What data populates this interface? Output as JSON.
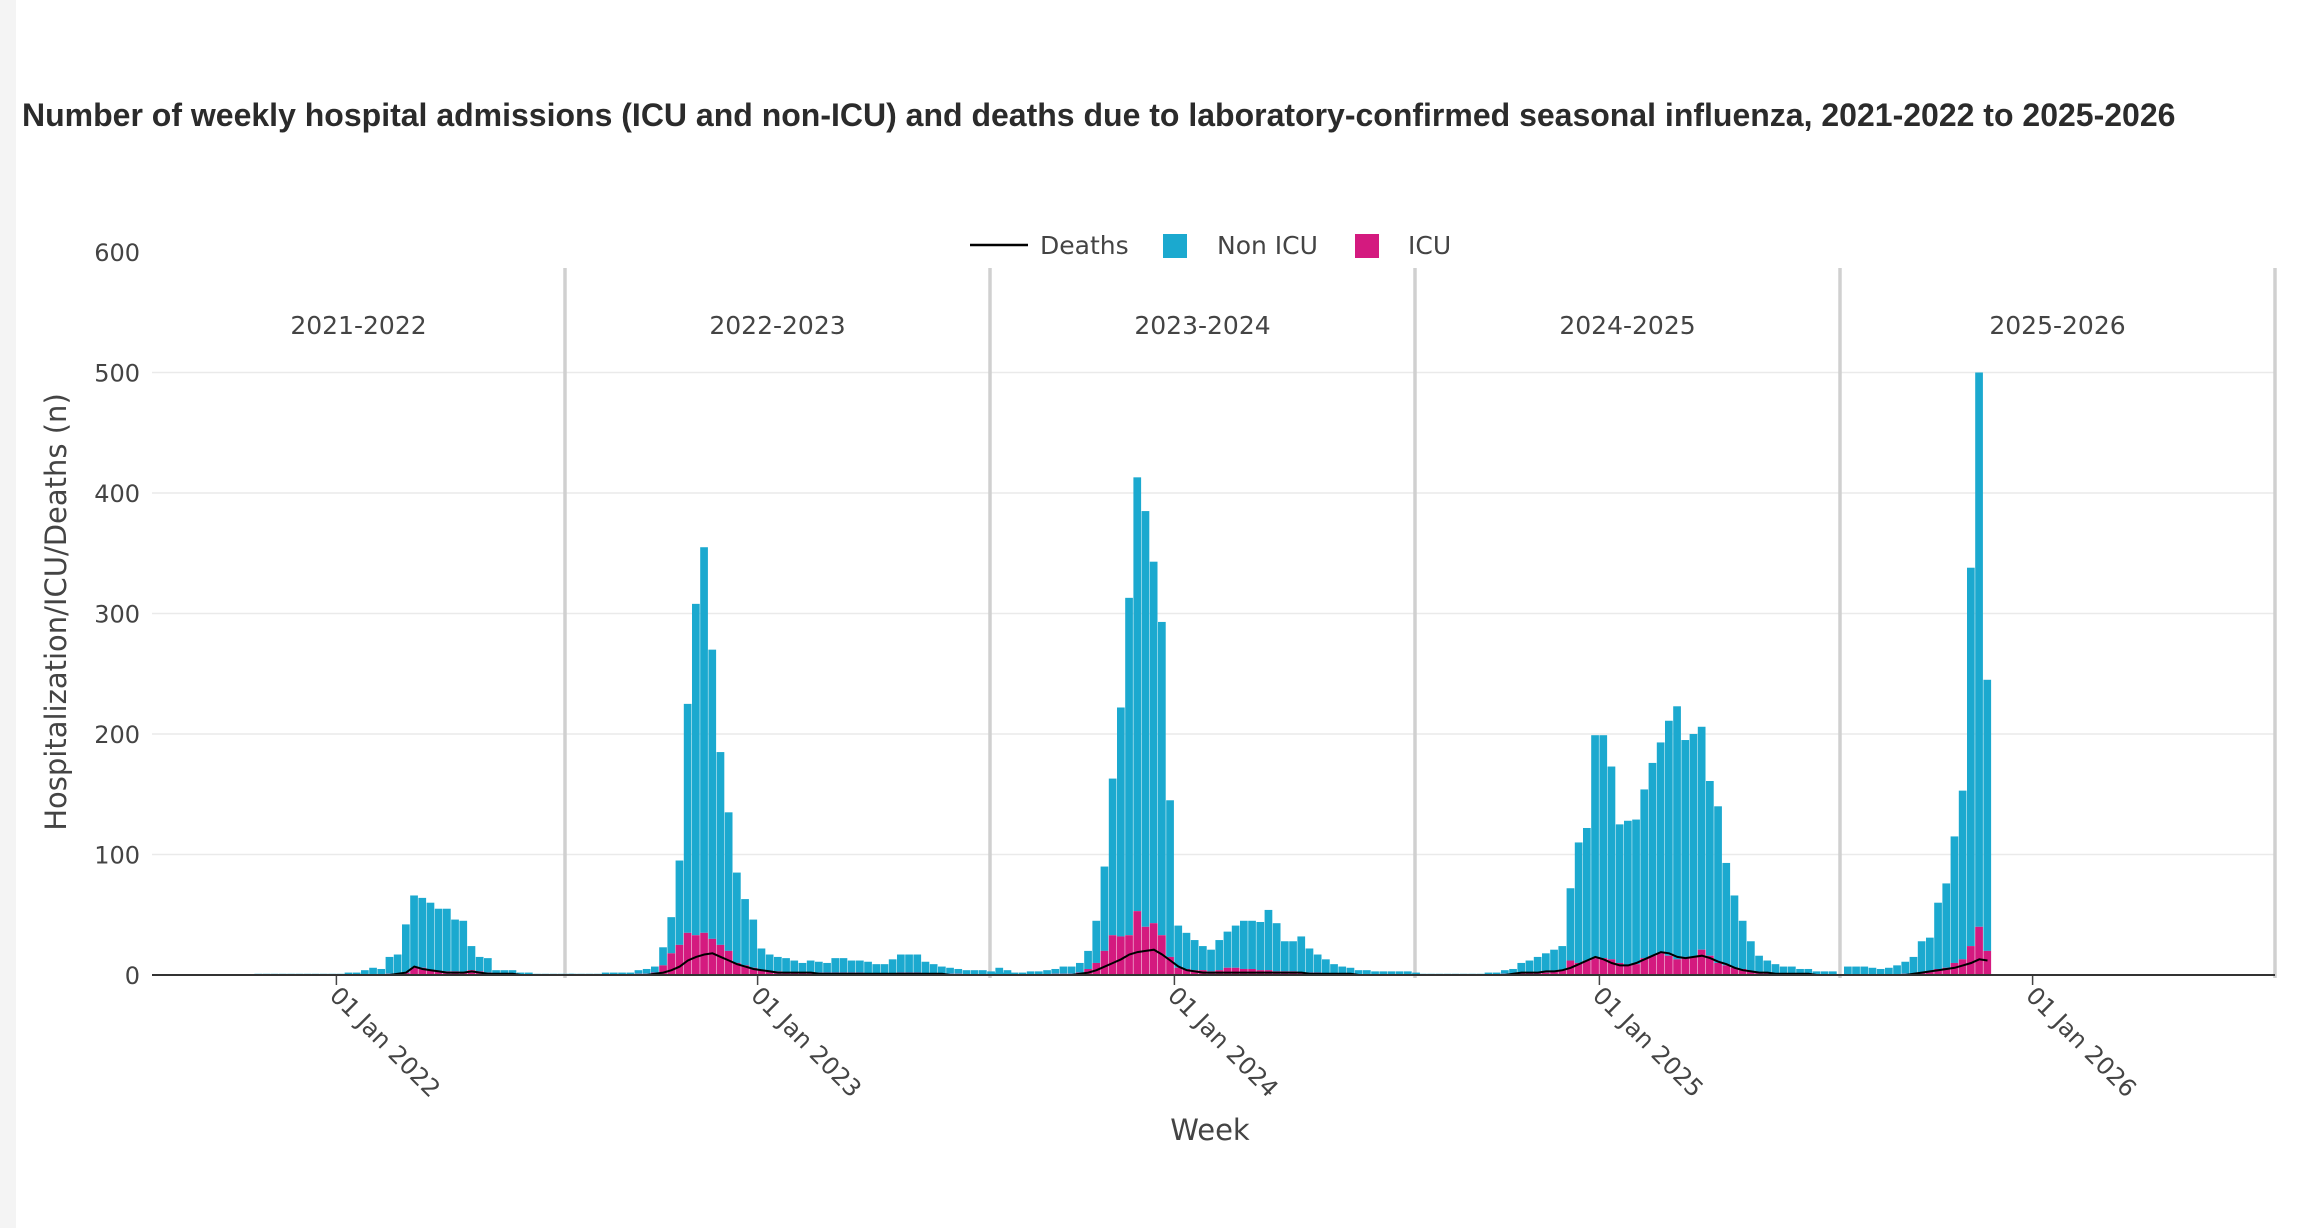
{
  "chart_data": {
    "type": "bar",
    "title": "Number of weekly hospital admissions (ICU and non-ICU) and deaths due to laboratory-confirmed seasonal influenza, 2021-2022 to 2025-2026",
    "xlabel": "Week",
    "ylabel": "Hospitalization/ICU/Deaths (n)",
    "ylim": [
      0,
      600
    ],
    "yticks": [
      0,
      100,
      200,
      300,
      400,
      500,
      600
    ],
    "grid": true,
    "legend_position": "top-center",
    "legend": [
      {
        "name": "Deaths",
        "kind": "line",
        "color": "#000000"
      },
      {
        "name": "Non ICU",
        "kind": "bar",
        "color": "#1BA9CF"
      },
      {
        "name": "ICU",
        "kind": "bar",
        "color": "#D41A7F"
      }
    ],
    "seasons": [
      {
        "label": "2021-2022",
        "x_tick": "01 Jan 2022",
        "non_icu": [
          0,
          0,
          0,
          0,
          0,
          0,
          0,
          0,
          0,
          0,
          0,
          0,
          1,
          1,
          1,
          1,
          1,
          1,
          1,
          1,
          1,
          1,
          1,
          2,
          2,
          4,
          6,
          5,
          14,
          16,
          40,
          60,
          58,
          56,
          52,
          52,
          43,
          43,
          20,
          12,
          12,
          3,
          3,
          3,
          2,
          2,
          1,
          1,
          1,
          1,
          1
        ],
        "icu": [
          0,
          0,
          0,
          0,
          0,
          0,
          0,
          0,
          0,
          0,
          0,
          0,
          0,
          0,
          0,
          0,
          0,
          0,
          0,
          0,
          0,
          0,
          0,
          0,
          0,
          0,
          0,
          0,
          1,
          1,
          2,
          6,
          6,
          4,
          3,
          3,
          3,
          2,
          4,
          3,
          2,
          1,
          1,
          1,
          0,
          0,
          0,
          0,
          0,
          0,
          0
        ],
        "deaths": [
          0,
          0,
          0,
          0,
          0,
          0,
          0,
          0,
          0,
          0,
          0,
          0,
          0,
          0,
          0,
          0,
          0,
          0,
          0,
          0,
          0,
          0,
          0,
          0,
          0,
          0,
          0,
          0,
          0,
          1,
          2,
          7,
          5,
          4,
          3,
          2,
          2,
          2,
          3,
          2,
          1,
          1,
          1,
          1,
          0,
          0,
          0,
          0,
          0,
          0,
          0
        ]
      },
      {
        "label": "2022-2023",
        "x_tick": "01 Jan 2023",
        "non_icu": [
          1,
          1,
          1,
          1,
          2,
          2,
          2,
          2,
          3,
          4,
          5,
          15,
          30,
          70,
          190,
          275,
          320,
          240,
          160,
          115,
          75,
          55,
          40,
          18,
          14,
          12,
          12,
          10,
          8,
          10,
          9,
          8,
          12,
          12,
          10,
          10,
          10,
          8,
          8,
          12,
          15,
          15,
          15,
          10,
          8,
          6,
          5,
          4,
          4,
          4,
          4,
          3,
          6,
          4
        ],
        "icu": [
          0,
          0,
          0,
          0,
          0,
          0,
          0,
          0,
          1,
          1,
          2,
          8,
          18,
          25,
          35,
          33,
          35,
          30,
          25,
          20,
          10,
          8,
          6,
          4,
          3,
          3,
          2,
          2,
          2,
          2,
          2,
          2,
          2,
          2,
          2,
          2,
          1,
          1,
          1,
          1,
          2,
          2,
          2,
          1,
          1,
          1,
          1,
          1,
          0,
          0,
          0,
          0,
          0,
          0
        ],
        "deaths": [
          0,
          0,
          0,
          0,
          0,
          0,
          0,
          0,
          0,
          0,
          1,
          2,
          4,
          7,
          12,
          15,
          17,
          18,
          15,
          12,
          9,
          7,
          5,
          4,
          3,
          2,
          2,
          2,
          2,
          2,
          1,
          1,
          1,
          1,
          1,
          1,
          1,
          1,
          1,
          1,
          1,
          1,
          1,
          1,
          1,
          1,
          0,
          0,
          0,
          0,
          0,
          0,
          0,
          0
        ]
      },
      {
        "label": "2023-2024",
        "x_tick": "01 Jan 2024",
        "non_icu": [
          2,
          2,
          2,
          2,
          3,
          3,
          4,
          4,
          6,
          6,
          8,
          15,
          35,
          70,
          130,
          190,
          280,
          360,
          345,
          300,
          260,
          130,
          35,
          30,
          25,
          20,
          18,
          25,
          30,
          35,
          40,
          40,
          40,
          50,
          40,
          25,
          25,
          30,
          20,
          15,
          12,
          8,
          6,
          5,
          4,
          4,
          3,
          3,
          3,
          3,
          3,
          2
        ],
        "icu": [
          0,
          0,
          0,
          0,
          0,
          0,
          0,
          1,
          1,
          1,
          2,
          5,
          10,
          20,
          33,
          32,
          33,
          53,
          40,
          43,
          33,
          15,
          6,
          5,
          4,
          4,
          3,
          4,
          6,
          6,
          5,
          5,
          4,
          4,
          3,
          3,
          3,
          2,
          2,
          2,
          1,
          1,
          1,
          1,
          0,
          0,
          0,
          0,
          0,
          0,
          0,
          0
        ],
        "deaths": [
          0,
          0,
          0,
          0,
          0,
          0,
          0,
          0,
          0,
          0,
          1,
          2,
          4,
          7,
          10,
          13,
          17,
          19,
          20,
          21,
          17,
          12,
          7,
          4,
          3,
          2,
          2,
          2,
          2,
          2,
          2,
          2,
          2,
          2,
          2,
          2,
          2,
          2,
          1,
          1,
          1,
          1,
          1,
          1,
          0,
          0,
          0,
          0,
          0,
          0,
          0,
          0
        ]
      },
      {
        "label": "2024-2025",
        "x_tick": "01 Jan 2025",
        "non_icu": [
          1,
          1,
          1,
          1,
          1,
          1,
          1,
          1,
          2,
          2,
          3,
          4,
          8,
          10,
          13,
          16,
          18,
          20,
          60,
          100,
          110,
          185,
          185,
          160,
          115,
          120,
          120,
          140,
          160,
          175,
          195,
          210,
          180,
          185,
          185,
          145,
          130,
          85,
          60,
          40,
          25,
          14,
          10,
          8,
          6,
          6,
          4,
          4,
          3,
          3,
          3
        ],
        "icu": [
          0,
          0,
          0,
          0,
          0,
          0,
          0,
          0,
          0,
          0,
          1,
          1,
          2,
          2,
          2,
          2,
          3,
          4,
          12,
          10,
          12,
          14,
          14,
          13,
          10,
          8,
          9,
          14,
          16,
          18,
          16,
          13,
          15,
          15,
          21,
          16,
          10,
          8,
          6,
          5,
          3,
          2,
          2,
          1,
          1,
          1,
          1,
          1,
          0,
          0,
          0
        ],
        "deaths": [
          0,
          0,
          0,
          0,
          0,
          0,
          0,
          0,
          0,
          0,
          0,
          1,
          2,
          2,
          2,
          3,
          3,
          4,
          6,
          9,
          12,
          15,
          13,
          10,
          8,
          8,
          10,
          13,
          16,
          19,
          18,
          15,
          14,
          15,
          16,
          14,
          11,
          9,
          6,
          4,
          3,
          2,
          2,
          1,
          1,
          1,
          1,
          1,
          0,
          0,
          0
        ]
      },
      {
        "label": "2025-2026",
        "x_tick": "01 Jan 2026",
        "non_icu": [
          7,
          7,
          7,
          6,
          5,
          6,
          8,
          10,
          14,
          26,
          28,
          55,
          70,
          105,
          140,
          314,
          460,
          225
        ],
        "icu": [
          0,
          0,
          0,
          0,
          0,
          0,
          0,
          1,
          1,
          2,
          3,
          5,
          6,
          10,
          13,
          24,
          40,
          20
        ],
        "deaths": [
          0,
          0,
          0,
          0,
          0,
          0,
          0,
          0,
          1,
          2,
          3,
          4,
          5,
          6,
          8,
          10,
          13,
          12
        ]
      }
    ]
  }
}
